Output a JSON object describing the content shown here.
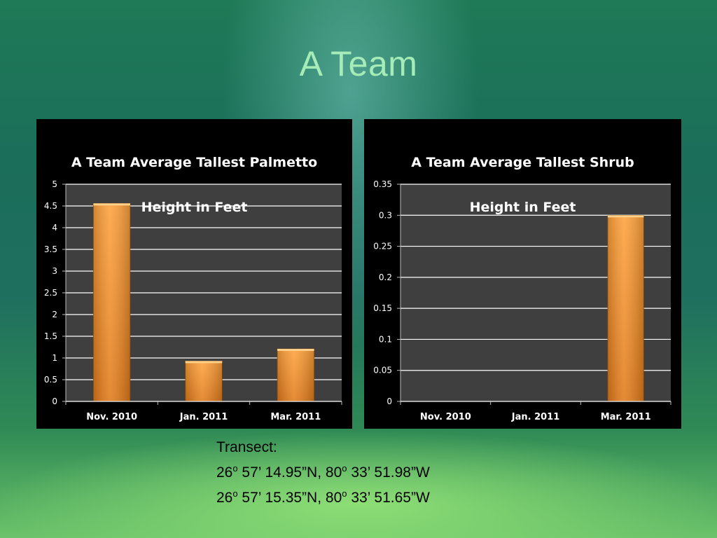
{
  "slide": {
    "title": "A Team"
  },
  "colors": {
    "bar_fill_top": "#ffa23c",
    "bar_fill_bottom": "#e07a1a",
    "plot_background": "#3f3f3f",
    "panel_background": "#000000",
    "gridline": "#ffffff",
    "title_color": "#a6ecb8"
  },
  "chart_data": [
    {
      "type": "bar",
      "title": "A Team Average Tallest Palmetto Height in Feet",
      "title_lines": [
        "A Team Average Tallest Palmetto",
        "Height in Feet"
      ],
      "categories": [
        "Nov. 2010",
        "Jan. 2011",
        "Mar. 2011"
      ],
      "values": [
        4.56,
        0.93,
        1.21
      ],
      "ylim": [
        0,
        5
      ],
      "yticks": [
        "0",
        "0.5",
        "1",
        "1.5",
        "2",
        "2.5",
        "3",
        "3.5",
        "4",
        "4.5",
        "5"
      ],
      "grid": true,
      "legend": "none"
    },
    {
      "type": "bar",
      "title": "A Team Average Tallest Shrub Height in Feet",
      "title_lines": [
        "A Team Average Tallest Shrub",
        "Height in Feet"
      ],
      "categories": [
        "Nov. 2010",
        "Jan. 2011",
        "Mar. 2011"
      ],
      "values": [
        0,
        0,
        0.3
      ],
      "ylim": [
        0,
        0.35
      ],
      "yticks": [
        "0",
        "0.05",
        "0.1",
        "0.15",
        "0.2",
        "0.25",
        "0.3",
        "0.35"
      ],
      "grid": true,
      "legend": "none"
    }
  ],
  "transect": {
    "label": "Transect:",
    "lines": [
      {
        "lat_deg": "26",
        "lat_rest": " 57’ 14.95”N, 80",
        "lon_rest": " 33’ 51.98”W",
        "degree_mark": "o"
      },
      {
        "lat_deg": "26",
        "lat_rest": " 57’ 15.35”N, 80",
        "lon_rest": " 33’ 51.65”W",
        "degree_mark": "o"
      }
    ]
  }
}
